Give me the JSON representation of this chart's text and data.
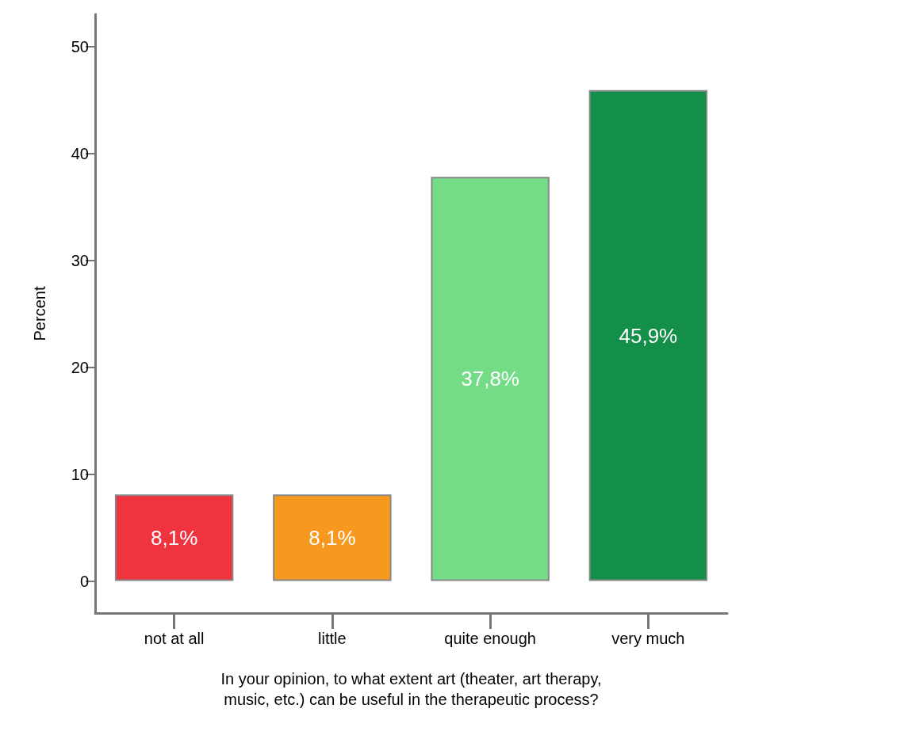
{
  "chart_data": {
    "type": "bar",
    "ylabel": "Percent",
    "xlabel": "In your opinion, to what extent art (theater, art therapy,\nmusic, etc.) can be useful in the therapeutic process?",
    "categories": [
      "not at all",
      "little",
      "quite enough",
      "very much"
    ],
    "values": [
      8.1,
      8.1,
      37.8,
      45.9
    ],
    "colors": [
      "#ef333f",
      "#f7991f",
      "#74dc87",
      "#138f4a"
    ],
    "value_labels": [
      "8,1%",
      "8,1%",
      "37,8%",
      "45,9%"
    ],
    "ylim": [
      -3,
      53
    ],
    "yticks": [
      0,
      10,
      20,
      30,
      40,
      50
    ]
  }
}
